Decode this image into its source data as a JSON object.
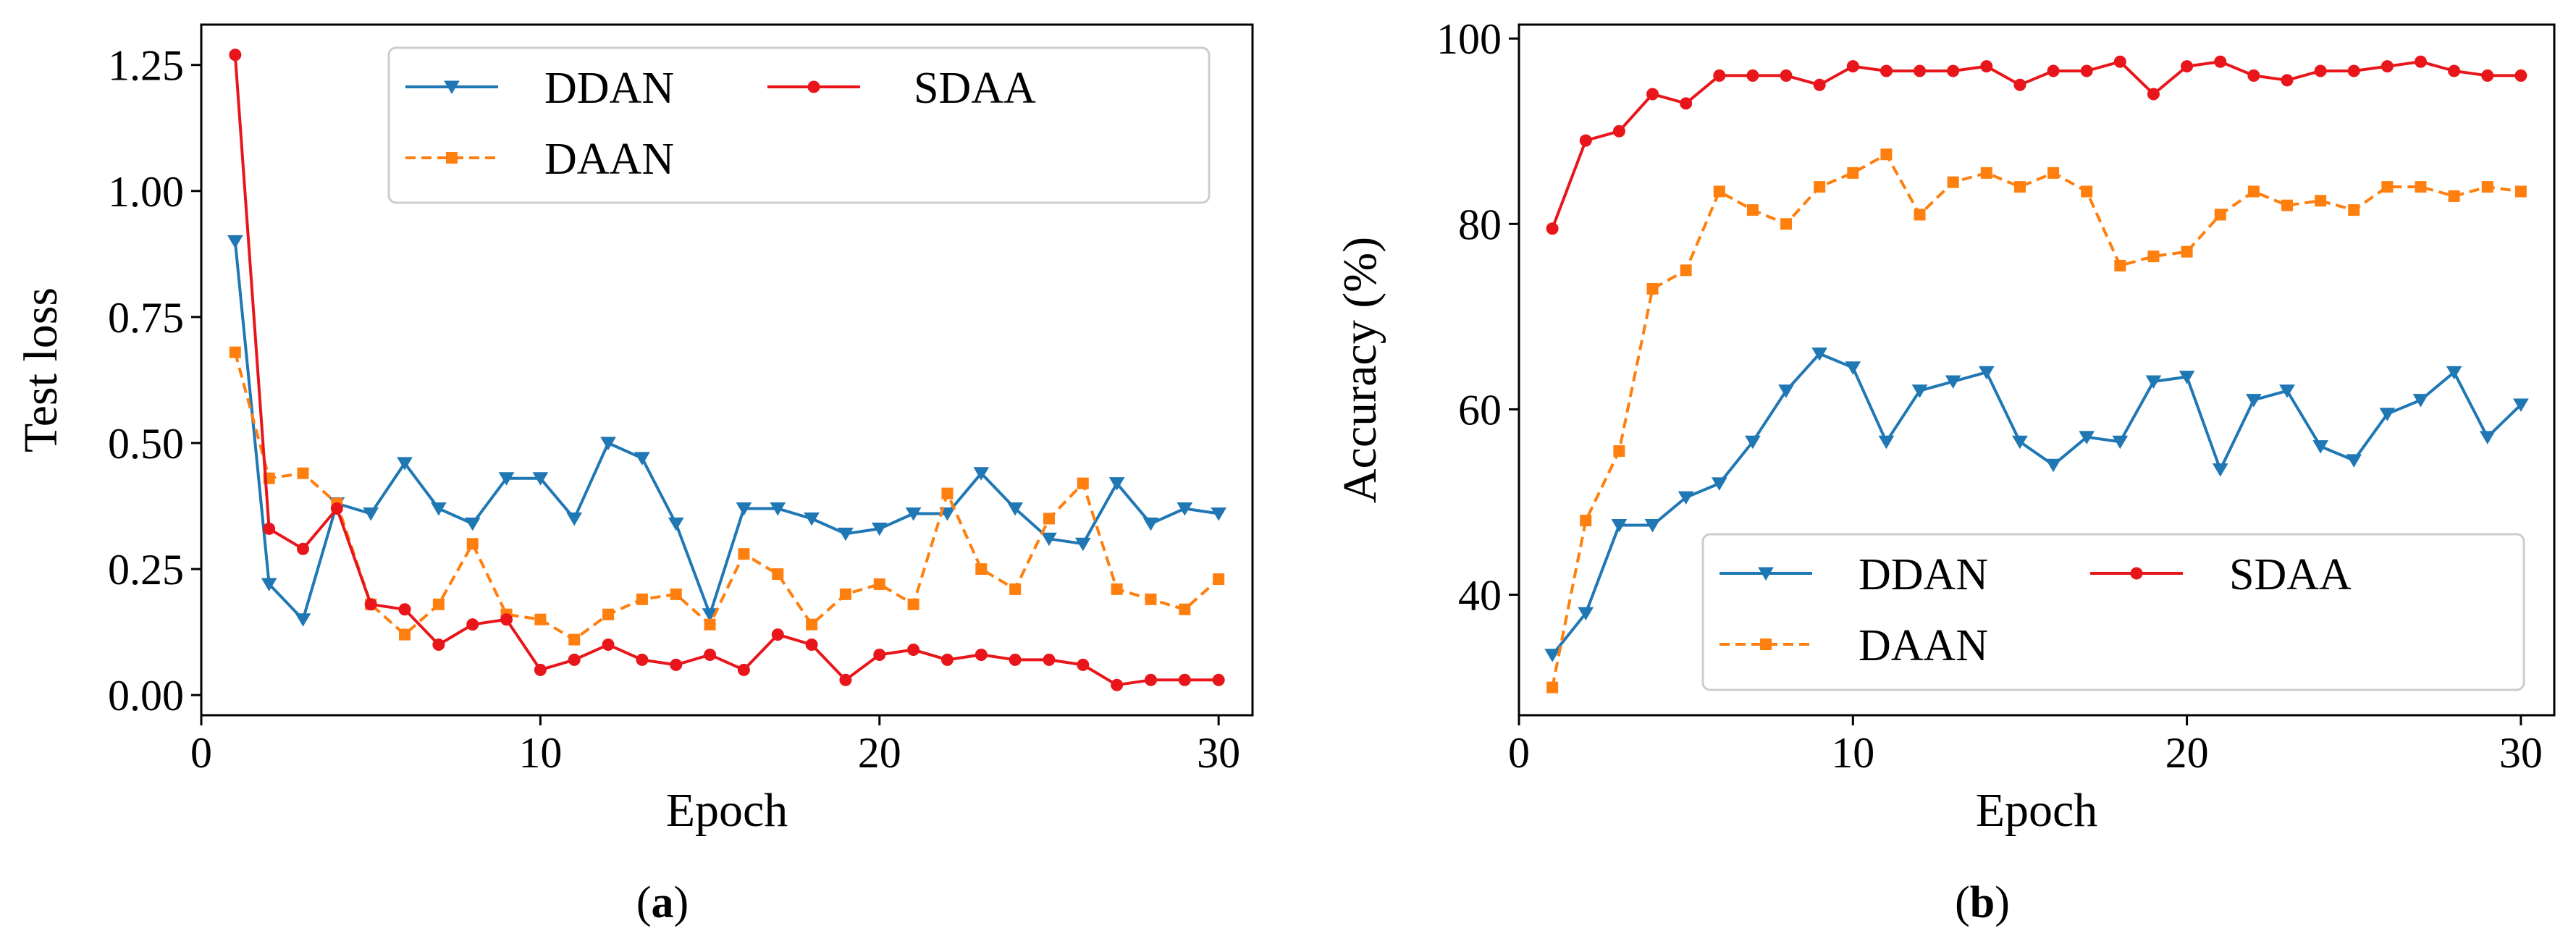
{
  "chart_data": [
    {
      "type": "line",
      "panel": "a",
      "caption_open": "(",
      "caption_letter": "a",
      "caption_close": ")",
      "title": "",
      "xlabel": "Epoch",
      "ylabel": "Test loss",
      "xlim": [
        0,
        31
      ],
      "ylim": [
        -0.04,
        1.33
      ],
      "xticks": [
        0,
        10,
        20,
        30
      ],
      "yticks": [
        0.0,
        0.25,
        0.5,
        0.75,
        1.0,
        1.25
      ],
      "ytick_labels": [
        "0.00",
        "0.25",
        "0.50",
        "0.75",
        "1.00",
        "1.25"
      ],
      "legend_position": "upper-right",
      "legend_columns": 2,
      "x": [
        1,
        2,
        3,
        4,
        5,
        6,
        7,
        8,
        9,
        10,
        11,
        12,
        13,
        14,
        15,
        16,
        17,
        18,
        19,
        20,
        21,
        22,
        23,
        24,
        25,
        26,
        27,
        28,
        29,
        30
      ],
      "series": [
        {
          "name": "DDAN",
          "color": "#1f77b4",
          "marker": "triangle-down",
          "dash": "solid",
          "values": [
            0.9,
            0.22,
            0.15,
            0.38,
            0.36,
            0.46,
            0.37,
            0.34,
            0.43,
            0.43,
            0.35,
            0.5,
            0.47,
            0.34,
            0.16,
            0.37,
            0.37,
            0.35,
            0.32,
            0.33,
            0.36,
            0.36,
            0.44,
            0.37,
            0.31,
            0.3,
            0.42,
            0.34,
            0.37,
            0.36
          ]
        },
        {
          "name": "DAAN",
          "color": "#ff7f0e",
          "marker": "square",
          "dash": "dashed",
          "values": [
            0.68,
            0.43,
            0.44,
            0.38,
            0.18,
            0.12,
            0.18,
            0.3,
            0.16,
            0.15,
            0.11,
            0.16,
            0.19,
            0.2,
            0.14,
            0.28,
            0.24,
            0.14,
            0.2,
            0.22,
            0.18,
            0.4,
            0.25,
            0.21,
            0.35,
            0.42,
            0.21,
            0.19,
            0.17,
            0.23
          ]
        },
        {
          "name": "SDAA",
          "color": "#e8161b",
          "marker": "circle",
          "dash": "solid",
          "values": [
            1.27,
            0.33,
            0.29,
            0.37,
            0.18,
            0.17,
            0.1,
            0.14,
            0.15,
            0.05,
            0.07,
            0.1,
            0.07,
            0.06,
            0.08,
            0.05,
            0.12,
            0.1,
            0.03,
            0.08,
            0.09,
            0.07,
            0.08,
            0.07,
            0.07,
            0.06,
            0.02,
            0.03,
            0.03,
            0.03
          ]
        }
      ]
    },
    {
      "type": "line",
      "panel": "b",
      "caption_open": "(",
      "caption_letter": "b",
      "caption_close": ")",
      "title": "",
      "xlabel": "Epoch",
      "ylabel": "Accuracy (%)",
      "xlim": [
        0,
        31
      ],
      "ylim": [
        27,
        101.5
      ],
      "xticks": [
        0,
        10,
        20,
        30
      ],
      "yticks": [
        40,
        60,
        80,
        100
      ],
      "ytick_labels": [
        "40",
        "60",
        "80",
        "100"
      ],
      "legend_position": "lower-right",
      "legend_columns": 2,
      "x": [
        1,
        2,
        3,
        4,
        5,
        6,
        7,
        8,
        9,
        10,
        11,
        12,
        13,
        14,
        15,
        16,
        17,
        18,
        19,
        20,
        21,
        22,
        23,
        24,
        25,
        26,
        27,
        28,
        29,
        30
      ],
      "series": [
        {
          "name": "DDAN",
          "color": "#1f77b4",
          "marker": "triangle-down",
          "dash": "solid",
          "values": [
            33.5,
            38.0,
            47.5,
            47.5,
            50.5,
            52.0,
            56.5,
            62.0,
            66.0,
            64.5,
            56.5,
            62.0,
            63.0,
            64.0,
            56.5,
            54.0,
            57.0,
            56.5,
            63.0,
            63.5,
            53.5,
            61.0,
            62.0,
            56.0,
            54.5,
            59.5,
            61.0,
            64.0,
            57.0,
            60.5
          ]
        },
        {
          "name": "DAAN",
          "color": "#ff7f0e",
          "marker": "square",
          "dash": "dashed",
          "values": [
            30.0,
            48.0,
            55.5,
            73.0,
            75.0,
            83.5,
            81.5,
            80.0,
            84.0,
            85.5,
            87.5,
            81.0,
            84.5,
            85.5,
            84.0,
            85.5,
            83.5,
            75.5,
            76.5,
            77.0,
            81.0,
            83.5,
            82.0,
            82.5,
            81.5,
            84.0,
            84.0,
            83.0,
            84.0,
            83.5
          ]
        },
        {
          "name": "SDAA",
          "color": "#e8161b",
          "marker": "circle",
          "dash": "solid",
          "values": [
            79.5,
            89.0,
            90.0,
            94.0,
            93.0,
            96.0,
            96.0,
            96.0,
            95.0,
            97.0,
            96.5,
            96.5,
            96.5,
            97.0,
            95.0,
            96.5,
            96.5,
            97.5,
            94.0,
            97.0,
            97.5,
            96.0,
            95.5,
            96.5,
            96.5,
            97.0,
            97.5,
            96.5,
            96.0,
            96.0
          ]
        }
      ]
    }
  ]
}
